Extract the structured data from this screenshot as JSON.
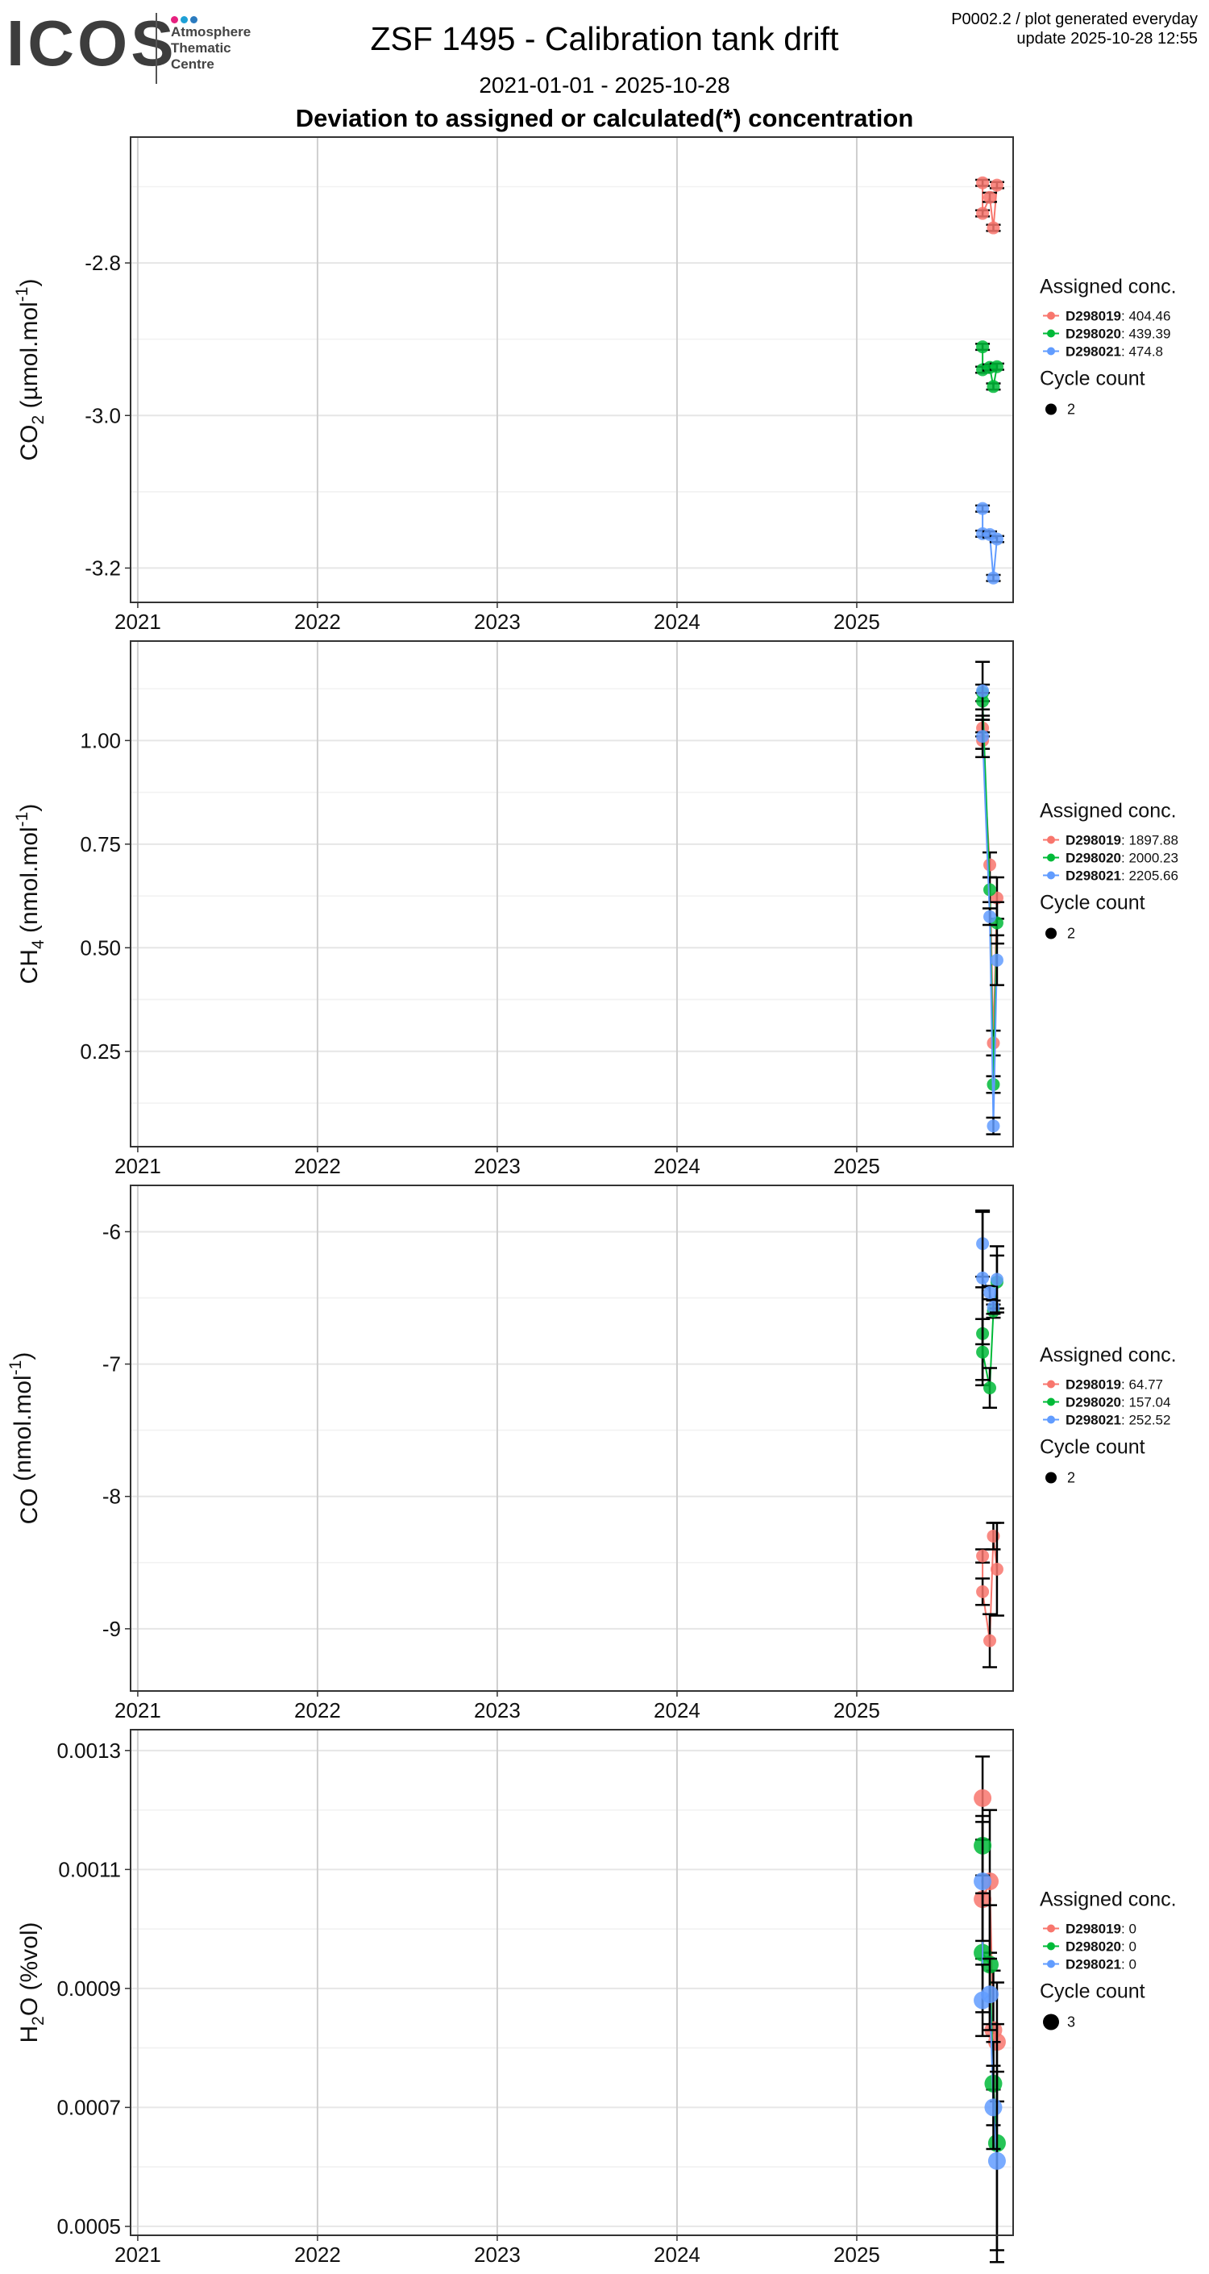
{
  "header": {
    "logo_main": "ICOS",
    "logo_sub": [
      "Atmosphere",
      "Thematic",
      "Centre"
    ],
    "logo_colors": [
      "#e6217f",
      "#1ea0d6",
      "#2b7bbf"
    ],
    "title": "ZSF 1495 - Calibration tank drift",
    "date_range": "2021-01-01 - 2025-10-28",
    "section_title": "Deviation to assigned or calculated(*) concentration",
    "meta_line1": "P0002.2 / plot generated everyday",
    "meta_line2": "update  2025-10-28 12:55"
  },
  "colors": {
    "D298019": "#f8766d",
    "D298020": "#00ba38",
    "D298021": "#619cff"
  },
  "chart_data": [
    {
      "type": "scatter",
      "id": "co2",
      "ylabel_base": "CO",
      "ylabel_sub": "2",
      "ylabel_unit_pre": " (µmol.mol",
      "ylabel_sup": "-1",
      "ylabel_post": ")",
      "xlim": [
        2020.96,
        2025.87
      ],
      "ylim": [
        -3.245,
        -2.635
      ],
      "x_ticks": [
        2021,
        2022,
        2023,
        2024,
        2025
      ],
      "x_tick_labels": [
        "2021",
        "2022",
        "2023",
        "2024",
        "2025"
      ],
      "y_ticks": [
        -2.8,
        -3.0,
        -3.2
      ],
      "y_tick_labels": [
        "-2.8",
        "-3.0",
        "-3.2"
      ],
      "legend": {
        "title": "Assigned conc.",
        "entries": [
          {
            "tank": "D298019",
            "value": "404.46"
          },
          {
            "tank": "D298020",
            "value": "439.39"
          },
          {
            "tank": "D298021",
            "value": "474.8"
          }
        ],
        "cycle_title": "Cycle count",
        "cycle_value": "2"
      },
      "series": [
        {
          "name": "D298019",
          "points": [
            [
              2025.7,
              -2.695,
              0.004
            ],
            [
              2025.7,
              -2.735,
              0.004
            ],
            [
              2025.74,
              -2.714,
              0.006
            ],
            [
              2025.76,
              -2.754,
              0.004
            ],
            [
              2025.78,
              -2.698,
              0.004
            ]
          ]
        },
        {
          "name": "D298020",
          "points": [
            [
              2025.7,
              -2.91,
              0.004
            ],
            [
              2025.7,
              -2.94,
              0.004
            ],
            [
              2025.74,
              -2.937,
              0.004
            ],
            [
              2025.76,
              -2.962,
              0.004
            ],
            [
              2025.78,
              -2.936,
              0.004
            ]
          ]
        },
        {
          "name": "D298021",
          "points": [
            [
              2025.7,
              -3.122,
              0.004
            ],
            [
              2025.7,
              -3.155,
              0.004
            ],
            [
              2025.74,
              -3.156,
              0.004
            ],
            [
              2025.76,
              -3.213,
              0.004
            ],
            [
              2025.78,
              -3.162,
              0.004
            ]
          ]
        }
      ]
    },
    {
      "type": "scatter",
      "id": "ch4",
      "ylabel_base": "CH",
      "ylabel_sub": "4",
      "ylabel_unit_pre": " (nmol.mol",
      "ylabel_sup": "-1",
      "ylabel_post": ")",
      "xlim": [
        2020.96,
        2025.87
      ],
      "ylim": [
        0.02,
        1.24
      ],
      "x_ticks": [
        2021,
        2022,
        2023,
        2024,
        2025
      ],
      "x_tick_labels": [
        "2021",
        "2022",
        "2023",
        "2024",
        "2025"
      ],
      "y_ticks": [
        1.0,
        0.75,
        0.5,
        0.25
      ],
      "y_tick_labels": [
        "1.00",
        "0.75",
        "0.50",
        "0.25"
      ],
      "legend": {
        "title": "Assigned conc.",
        "entries": [
          {
            "tank": "D298019",
            "value": "1897.88"
          },
          {
            "tank": "D298020",
            "value": "2000.23"
          },
          {
            "tank": "D298021",
            "value": "2205.66"
          }
        ],
        "cycle_title": "Cycle count",
        "cycle_value": "2"
      },
      "series": [
        {
          "name": "D298019",
          "points": [
            [
              2025.7,
              1.03,
              0.02
            ],
            [
              2025.7,
              1.0,
              0.02
            ],
            [
              2025.74,
              0.7,
              0.03
            ],
            [
              2025.76,
              0.27,
              0.03
            ],
            [
              2025.78,
              0.62,
              0.05
            ]
          ]
        },
        {
          "name": "D298020",
          "points": [
            [
              2025.7,
              1.115,
              0.02
            ],
            [
              2025.7,
              1.095,
              0.02
            ],
            [
              2025.74,
              0.64,
              0.03
            ],
            [
              2025.76,
              0.17,
              0.02
            ],
            [
              2025.78,
              0.56,
              0.05
            ]
          ]
        },
        {
          "name": "D298021",
          "points": [
            [
              2025.7,
              1.12,
              0.07
            ],
            [
              2025.7,
              1.01,
              0.05
            ],
            [
              2025.74,
              0.575,
              0.02
            ],
            [
              2025.76,
              0.07,
              0.02
            ],
            [
              2025.78,
              0.47,
              0.06
            ]
          ]
        }
      ]
    },
    {
      "type": "scatter",
      "id": "co",
      "ylabel_base": "CO",
      "ylabel_sub": "",
      "ylabel_unit_pre": " (nmol.mol",
      "ylabel_sup": "-1",
      "ylabel_post": ")",
      "xlim": [
        2020.96,
        2025.87
      ],
      "ylim": [
        -9.47,
        -5.65
      ],
      "x_ticks": [
        2021,
        2022,
        2023,
        2024,
        2025
      ],
      "x_tick_labels": [
        "2021",
        "2022",
        "2023",
        "2024",
        "2025"
      ],
      "y_ticks": [
        -6,
        -7,
        -8,
        -9
      ],
      "y_tick_labels": [
        "-6",
        "-7",
        "-8",
        "-9"
      ],
      "legend": {
        "title": "Assigned conc.",
        "entries": [
          {
            "tank": "D298019",
            "value": "64.77"
          },
          {
            "tank": "D298020",
            "value": "157.04"
          },
          {
            "tank": "D298021",
            "value": "252.52"
          }
        ],
        "cycle_title": "Cycle count",
        "cycle_value": "2"
      },
      "series": [
        {
          "name": "D298019",
          "points": [
            [
              2025.7,
              -8.45,
              0.05
            ],
            [
              2025.7,
              -8.72,
              0.1
            ],
            [
              2025.74,
              -9.09,
              0.2
            ],
            [
              2025.76,
              -8.3,
              0.1
            ],
            [
              2025.78,
              -8.55,
              0.35
            ]
          ]
        },
        {
          "name": "D298020",
          "points": [
            [
              2025.7,
              -6.77,
              0.35
            ],
            [
              2025.7,
              -6.91,
              0.25
            ],
            [
              2025.74,
              -7.18,
              0.15
            ],
            [
              2025.76,
              -6.6,
              0.05
            ],
            [
              2025.78,
              -6.38,
              0.2
            ]
          ]
        },
        {
          "name": "D298021",
          "points": [
            [
              2025.7,
              -6.09,
              0.25
            ],
            [
              2025.7,
              -6.35,
              0.5
            ],
            [
              2025.74,
              -6.46,
              0.05
            ],
            [
              2025.76,
              -6.57,
              0.05
            ],
            [
              2025.78,
              -6.36,
              0.25
            ]
          ]
        }
      ]
    },
    {
      "type": "scatter",
      "id": "h2o",
      "ylabel_base": "H",
      "ylabel_sub": "2",
      "ylabel_unit_pre": "O (%vol)",
      "ylabel_sup": "",
      "ylabel_post": "",
      "xlim": [
        2020.96,
        2025.87
      ],
      "ylim": [
        0.000485,
        0.001335
      ],
      "x_ticks": [
        2021,
        2022,
        2023,
        2024,
        2025
      ],
      "x_tick_labels": [
        "2021",
        "2022",
        "2023",
        "2024",
        "2025"
      ],
      "y_ticks": [
        0.0013,
        0.0011,
        0.0009,
        0.0007,
        0.0005
      ],
      "y_tick_labels": [
        "0.0013",
        "0.0011",
        "0.0009",
        "0.0007",
        "0.0005"
      ],
      "legend": {
        "title": "Assigned conc.",
        "entries": [
          {
            "tank": "D298019",
            "value": "0"
          },
          {
            "tank": "D298020",
            "value": "0"
          },
          {
            "tank": "D298021",
            "value": "0"
          }
        ],
        "cycle_title": "Cycle count",
        "cycle_value": "3"
      },
      "series": [
        {
          "name": "D298019",
          "points": [
            [
              2025.7,
              0.00122,
              7e-05
            ],
            [
              2025.7,
              0.00105,
              0.0001
            ],
            [
              2025.74,
              0.00108,
              0.00012
            ],
            [
              2025.76,
              0.00083,
              0.0001
            ],
            [
              2025.78,
              0.00081,
              0.0001
            ]
          ]
        },
        {
          "name": "D298020",
          "points": [
            [
              2025.7,
              0.00114,
              5e-05
            ],
            [
              2025.7,
              0.00096,
              0.0001
            ],
            [
              2025.74,
              0.00094,
              0.0001
            ],
            [
              2025.76,
              0.00074,
              7e-05
            ],
            [
              2025.78,
              0.00064,
              0.0002
            ]
          ]
        },
        {
          "name": "D298021",
          "points": [
            [
              2025.7,
              0.00108,
              0.0001
            ],
            [
              2025.7,
              0.00088,
              6e-05
            ],
            [
              2025.74,
              0.00089,
              6e-05
            ],
            [
              2025.76,
              0.0007,
              7e-05
            ],
            [
              2025.78,
              0.00061,
              0.00015
            ]
          ]
        }
      ]
    }
  ]
}
